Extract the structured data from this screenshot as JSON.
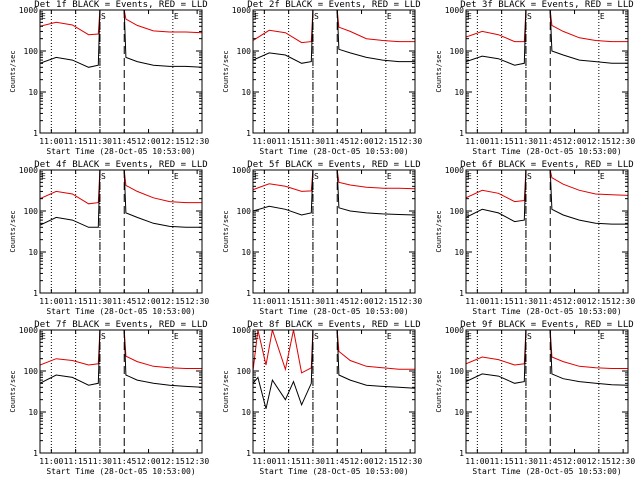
{
  "page": {
    "background": "#ffffff"
  },
  "shared": {
    "xlabel": "Start Time (28-Oct-05 10:53:00)",
    "ylabel": "Counts/sec",
    "xticks": [
      "11:00",
      "11:15",
      "11:30",
      "11:45",
      "12:00",
      "12:15",
      "12:30"
    ],
    "xtick_minutes": [
      7,
      22,
      37,
      52,
      67,
      82,
      97
    ],
    "xlim_minutes": [
      0,
      100
    ],
    "yticks": [
      "1",
      "10",
      "100",
      "1000"
    ],
    "ylim": [
      1,
      1000
    ],
    "yscale": "log",
    "markers": {
      "S_label": "S",
      "E_label": "E"
    },
    "dotted_lines_minutes": [
      7,
      22,
      37,
      82
    ],
    "dashed_lines_minutes": [
      37,
      52
    ],
    "series_colors": {
      "events": "#000000",
      "lld": "#e00000"
    }
  },
  "chart_data": [
    {
      "type": "line",
      "title": "Det 1f  BLACK = Events, RED = LLD",
      "series": [
        {
          "x": [
            0,
            10,
            20,
            30,
            36,
            37,
            52,
            53,
            60,
            70,
            80,
            90,
            100
          ],
          "values": [
            400,
            500,
            430,
            250,
            260,
            1000,
            1000,
            600,
            420,
            310,
            290,
            290,
            280
          ]
        },
        {
          "x": [
            0,
            10,
            20,
            30,
            36,
            37,
            52,
            53,
            60,
            70,
            80,
            90,
            100
          ],
          "values": [
            50,
            70,
            60,
            40,
            45,
            1000,
            1000,
            70,
            55,
            45,
            42,
            42,
            40
          ]
        }
      ]
    },
    {
      "type": "line",
      "title": "Det 2f  BLACK = Events, RED = LLD",
      "series": [
        {
          "x": [
            0,
            10,
            20,
            30,
            36,
            37,
            52,
            53,
            60,
            70,
            80,
            90,
            100
          ],
          "values": [
            180,
            320,
            280,
            160,
            170,
            1000,
            1000,
            380,
            300,
            200,
            180,
            170,
            170
          ]
        },
        {
          "x": [
            0,
            10,
            20,
            30,
            36,
            37,
            52,
            53,
            60,
            70,
            80,
            90,
            100
          ],
          "values": [
            60,
            90,
            80,
            50,
            55,
            1000,
            1000,
            110,
            90,
            70,
            60,
            55,
            55
          ]
        }
      ]
    },
    {
      "type": "line",
      "title": "Det 3f  BLACK = Events, RED = LLD",
      "series": [
        {
          "x": [
            0,
            10,
            20,
            30,
            36,
            37,
            52,
            53,
            60,
            70,
            80,
            90,
            100
          ],
          "values": [
            220,
            300,
            250,
            170,
            170,
            1000,
            1000,
            420,
            300,
            210,
            180,
            170,
            170
          ]
        },
        {
          "x": [
            0,
            10,
            20,
            30,
            36,
            37,
            52,
            53,
            60,
            70,
            80,
            90,
            100
          ],
          "values": [
            55,
            75,
            65,
            45,
            50,
            1000,
            1000,
            100,
            80,
            60,
            55,
            50,
            50
          ]
        }
      ]
    },
    {
      "type": "line",
      "title": "Det 4f  BLACK = Events, RED = LLD",
      "series": [
        {
          "x": [
            0,
            10,
            20,
            30,
            36,
            37,
            52,
            53,
            60,
            70,
            80,
            90,
            100
          ],
          "values": [
            200,
            300,
            260,
            150,
            160,
            1000,
            1000,
            420,
            300,
            210,
            170,
            160,
            160
          ]
        },
        {
          "x": [
            0,
            10,
            20,
            30,
            36,
            37,
            52,
            53,
            60,
            70,
            80,
            90,
            100
          ],
          "values": [
            45,
            70,
            60,
            40,
            40,
            1000,
            1000,
            90,
            70,
            50,
            42,
            40,
            40
          ]
        }
      ]
    },
    {
      "type": "line",
      "title": "Det 5f  BLACK = Events, RED = LLD",
      "series": [
        {
          "x": [
            0,
            10,
            20,
            30,
            36,
            37,
            52,
            53,
            60,
            70,
            80,
            90,
            100
          ],
          "values": [
            330,
            460,
            400,
            300,
            310,
            1000,
            1000,
            500,
            430,
            380,
            360,
            360,
            350
          ]
        },
        {
          "x": [
            0,
            10,
            20,
            30,
            36,
            37,
            52,
            53,
            60,
            70,
            80,
            90,
            100
          ],
          "values": [
            100,
            130,
            110,
            80,
            90,
            1000,
            1000,
            120,
            100,
            90,
            85,
            82,
            80
          ]
        }
      ]
    },
    {
      "type": "line",
      "title": "Det 6f  BLACK = Events, RED = LLD",
      "series": [
        {
          "x": [
            0,
            10,
            20,
            30,
            36,
            37,
            52,
            53,
            60,
            70,
            80,
            90,
            100
          ],
          "values": [
            210,
            320,
            270,
            170,
            180,
            1000,
            1000,
            650,
            450,
            320,
            260,
            250,
            240
          ]
        },
        {
          "x": [
            0,
            10,
            20,
            30,
            36,
            37,
            52,
            53,
            60,
            70,
            80,
            90,
            100
          ],
          "values": [
            70,
            110,
            90,
            55,
            60,
            1000,
            1000,
            110,
            80,
            60,
            50,
            48,
            48
          ]
        }
      ]
    },
    {
      "type": "line",
      "title": "Det 7f  BLACK = Events, RED = LLD",
      "series": [
        {
          "x": [
            0,
            10,
            20,
            30,
            36,
            37,
            52,
            53,
            60,
            70,
            80,
            90,
            100
          ],
          "values": [
            140,
            200,
            180,
            140,
            150,
            1000,
            1000,
            230,
            170,
            130,
            120,
            115,
            115
          ]
        },
        {
          "x": [
            0,
            10,
            20,
            30,
            36,
            37,
            52,
            53,
            60,
            70,
            80,
            90,
            100
          ],
          "values": [
            50,
            80,
            70,
            45,
            50,
            1000,
            1000,
            80,
            60,
            50,
            45,
            42,
            40
          ]
        }
      ]
    },
    {
      "type": "line",
      "title": "Det 8f  BLACK = Events, RED = LLD",
      "series": [
        {
          "x": [
            0,
            3,
            8,
            12,
            20,
            25,
            30,
            36,
            37,
            52,
            53,
            60,
            70,
            80,
            90,
            100
          ],
          "values": [
            100,
            1000,
            140,
            1000,
            110,
            1000,
            90,
            120,
            1000,
            1000,
            300,
            180,
            130,
            120,
            110,
            110
          ]
        },
        {
          "x": [
            0,
            3,
            8,
            12,
            20,
            25,
            30,
            36,
            37,
            52,
            53,
            60,
            70,
            80,
            90,
            100
          ],
          "values": [
            50,
            70,
            12,
            60,
            20,
            55,
            15,
            50,
            1000,
            1000,
            80,
            60,
            45,
            42,
            40,
            38
          ]
        }
      ]
    },
    {
      "type": "line",
      "title": "Det 9f  BLACK = Events, RED = LLD",
      "series": [
        {
          "x": [
            0,
            10,
            20,
            30,
            36,
            37,
            52,
            53,
            60,
            70,
            80,
            90,
            100
          ],
          "values": [
            150,
            220,
            190,
            140,
            150,
            1000,
            1000,
            220,
            170,
            130,
            120,
            115,
            115
          ]
        },
        {
          "x": [
            0,
            10,
            20,
            30,
            36,
            37,
            52,
            53,
            60,
            70,
            80,
            90,
            100
          ],
          "values": [
            55,
            85,
            75,
            50,
            55,
            1000,
            1000,
            85,
            65,
            55,
            50,
            46,
            45
          ]
        }
      ]
    }
  ]
}
